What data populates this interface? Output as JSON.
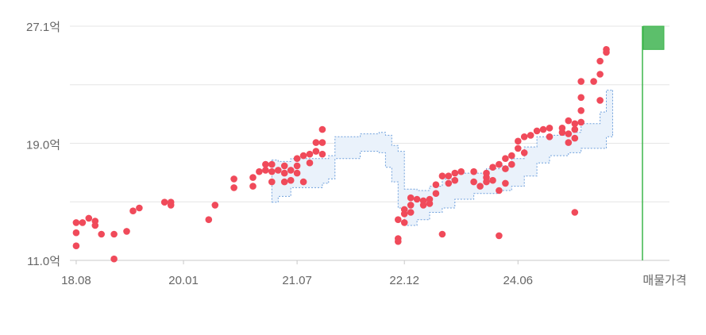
{
  "colors": {
    "dot": "#f04a5a",
    "band_fill": "#eaf2fb",
    "band_stroke": "#6fa0dc",
    "grid": "#e6e6e6",
    "axis": "#c8c8c8",
    "label": "#666666",
    "marker_line": "#3bb54a",
    "marker_flag": "#5cbf6b"
  },
  "chart_data": {
    "type": "scatter",
    "y_unit": "억",
    "ylim": [
      11.0,
      27.1
    ],
    "yticks": [
      {
        "value": 11.0,
        "label": "11.0억"
      },
      {
        "value": 19.0,
        "label": "19.0억"
      },
      {
        "value": 27.1,
        "label": "27.1억"
      }
    ],
    "xlim": [
      "2018-07",
      "2026-06"
    ],
    "xticks": [
      {
        "date": "2018-08",
        "label": "18.08"
      },
      {
        "date": "2020-01",
        "label": "20.01"
      },
      {
        "date": "2021-07",
        "label": "21.07"
      },
      {
        "date": "2022-12",
        "label": "22.12"
      },
      {
        "date": "2024-06",
        "label": "24.06"
      }
    ],
    "marker_label": "매물가격",
    "listing_price_range": [
      25.5,
      27.1
    ],
    "grid": true,
    "points": [
      {
        "x": "2018-08",
        "y": 13.6
      },
      {
        "x": "2018-08",
        "y": 12.9
      },
      {
        "x": "2018-08",
        "y": 12.0
      },
      {
        "x": "2018-09",
        "y": 13.6
      },
      {
        "x": "2018-10",
        "y": 13.9
      },
      {
        "x": "2018-11",
        "y": 13.7
      },
      {
        "x": "2018-11",
        "y": 13.4
      },
      {
        "x": "2018-12",
        "y": 12.8
      },
      {
        "x": "2019-02",
        "y": 12.8
      },
      {
        "x": "2019-02",
        "y": 11.1
      },
      {
        "x": "2019-04",
        "y": 13.0
      },
      {
        "x": "2019-05",
        "y": 14.4
      },
      {
        "x": "2019-06",
        "y": 14.6
      },
      {
        "x": "2019-10",
        "y": 15.0
      },
      {
        "x": "2019-11",
        "y": 15.0
      },
      {
        "x": "2019-11",
        "y": 14.8
      },
      {
        "x": "2020-05",
        "y": 13.8
      },
      {
        "x": "2020-06",
        "y": 14.8
      },
      {
        "x": "2020-09",
        "y": 16.0
      },
      {
        "x": "2020-09",
        "y": 16.6
      },
      {
        "x": "2020-12",
        "y": 16.7
      },
      {
        "x": "2020-12",
        "y": 16.1
      },
      {
        "x": "2021-01",
        "y": 17.1
      },
      {
        "x": "2021-02",
        "y": 17.2
      },
      {
        "x": "2021-02",
        "y": 17.6
      },
      {
        "x": "2021-03",
        "y": 17.6
      },
      {
        "x": "2021-03",
        "y": 17.1
      },
      {
        "x": "2021-03",
        "y": 16.4
      },
      {
        "x": "2021-04",
        "y": 17.2
      },
      {
        "x": "2021-05",
        "y": 17.5
      },
      {
        "x": "2021-05",
        "y": 17.0
      },
      {
        "x": "2021-05",
        "y": 16.4
      },
      {
        "x": "2021-06",
        "y": 17.2
      },
      {
        "x": "2021-06",
        "y": 16.5
      },
      {
        "x": "2021-07",
        "y": 18.0
      },
      {
        "x": "2021-07",
        "y": 17.5
      },
      {
        "x": "2021-07",
        "y": 17.0
      },
      {
        "x": "2021-08",
        "y": 18.2
      },
      {
        "x": "2021-08",
        "y": 16.4
      },
      {
        "x": "2021-09",
        "y": 18.3
      },
      {
        "x": "2021-09",
        "y": 17.7
      },
      {
        "x": "2021-10",
        "y": 18.5
      },
      {
        "x": "2021-10",
        "y": 19.1
      },
      {
        "x": "2021-11",
        "y": 18.3
      },
      {
        "x": "2021-11",
        "y": 19.1
      },
      {
        "x": "2021-11",
        "y": 20.0
      },
      {
        "x": "2022-11",
        "y": 13.8
      },
      {
        "x": "2022-11",
        "y": 12.5
      },
      {
        "x": "2022-11",
        "y": 12.3
      },
      {
        "x": "2022-12",
        "y": 14.2
      },
      {
        "x": "2022-12",
        "y": 14.5
      },
      {
        "x": "2022-12",
        "y": 13.6
      },
      {
        "x": "2023-01",
        "y": 15.3
      },
      {
        "x": "2023-01",
        "y": 14.8
      },
      {
        "x": "2023-01",
        "y": 14.3
      },
      {
        "x": "2023-02",
        "y": 15.2
      },
      {
        "x": "2023-03",
        "y": 14.8
      },
      {
        "x": "2023-03",
        "y": 15.1
      },
      {
        "x": "2023-04",
        "y": 15.2
      },
      {
        "x": "2023-04",
        "y": 14.9
      },
      {
        "x": "2023-05",
        "y": 15.6
      },
      {
        "x": "2023-05",
        "y": 16.2
      },
      {
        "x": "2023-06",
        "y": 16.8
      },
      {
        "x": "2023-06",
        "y": 12.8
      },
      {
        "x": "2023-07",
        "y": 16.3
      },
      {
        "x": "2023-07",
        "y": 16.8
      },
      {
        "x": "2023-08",
        "y": 17.0
      },
      {
        "x": "2023-08",
        "y": 16.5
      },
      {
        "x": "2023-09",
        "y": 17.1
      },
      {
        "x": "2023-11",
        "y": 17.1
      },
      {
        "x": "2023-11",
        "y": 16.4
      },
      {
        "x": "2023-12",
        "y": 16.1
      },
      {
        "x": "2024-01",
        "y": 17.0
      },
      {
        "x": "2024-01",
        "y": 16.7
      },
      {
        "x": "2024-01",
        "y": 16.4
      },
      {
        "x": "2024-02",
        "y": 17.4
      },
      {
        "x": "2024-02",
        "y": 16.5
      },
      {
        "x": "2024-03",
        "y": 17.6
      },
      {
        "x": "2024-03",
        "y": 15.8
      },
      {
        "x": "2024-03",
        "y": 12.7
      },
      {
        "x": "2024-04",
        "y": 18.0
      },
      {
        "x": "2024-04",
        "y": 17.3
      },
      {
        "x": "2024-04",
        "y": 16.3
      },
      {
        "x": "2024-05",
        "y": 18.2
      },
      {
        "x": "2024-05",
        "y": 17.6
      },
      {
        "x": "2024-06",
        "y": 19.2
      },
      {
        "x": "2024-06",
        "y": 18.7
      },
      {
        "x": "2024-07",
        "y": 19.5
      },
      {
        "x": "2024-07",
        "y": 18.4
      },
      {
        "x": "2024-08",
        "y": 19.6
      },
      {
        "x": "2024-09",
        "y": 19.9
      },
      {
        "x": "2024-10",
        "y": 20.0
      },
      {
        "x": "2024-11",
        "y": 20.1
      },
      {
        "x": "2024-11",
        "y": 19.5
      },
      {
        "x": "2025-01",
        "y": 20.1
      },
      {
        "x": "2025-01",
        "y": 19.8
      },
      {
        "x": "2025-02",
        "y": 20.6
      },
      {
        "x": "2025-02",
        "y": 19.7
      },
      {
        "x": "2025-02",
        "y": 19.1
      },
      {
        "x": "2025-03",
        "y": 20.4
      },
      {
        "x": "2025-03",
        "y": 20.0
      },
      {
        "x": "2025-03",
        "y": 19.4
      },
      {
        "x": "2025-03",
        "y": 14.3
      },
      {
        "x": "2025-04",
        "y": 20.5
      },
      {
        "x": "2025-04",
        "y": 21.3
      },
      {
        "x": "2025-04",
        "y": 22.2
      },
      {
        "x": "2025-04",
        "y": 23.3
      },
      {
        "x": "2025-06",
        "y": 23.3
      },
      {
        "x": "2025-07",
        "y": 23.8
      },
      {
        "x": "2025-07",
        "y": 24.7
      },
      {
        "x": "2025-07",
        "y": 22.0
      },
      {
        "x": "2025-08",
        "y": 25.3
      },
      {
        "x": "2025-08",
        "y": 25.5
      }
    ],
    "band_upper": [
      {
        "x": "2021-03",
        "y": 17.9
      },
      {
        "x": "2021-04",
        "y": 17.8
      },
      {
        "x": "2021-06",
        "y": 18.0
      },
      {
        "x": "2021-10",
        "y": 18.0
      },
      {
        "x": "2021-11",
        "y": 18.0
      },
      {
        "x": "2021-12",
        "y": 18.2
      },
      {
        "x": "2022-01",
        "y": 19.5
      },
      {
        "x": "2022-04",
        "y": 19.5
      },
      {
        "x": "2022-05",
        "y": 19.7
      },
      {
        "x": "2022-07",
        "y": 19.7
      },
      {
        "x": "2022-08",
        "y": 19.8
      },
      {
        "x": "2022-09",
        "y": 19.6
      },
      {
        "x": "2022-10",
        "y": 18.9
      },
      {
        "x": "2022-11",
        "y": 18.5
      },
      {
        "x": "2022-12",
        "y": 15.9
      },
      {
        "x": "2023-02",
        "y": 15.8
      },
      {
        "x": "2023-04",
        "y": 16.1
      },
      {
        "x": "2023-06",
        "y": 16.6
      },
      {
        "x": "2023-08",
        "y": 17.0
      },
      {
        "x": "2023-11",
        "y": 17.0
      },
      {
        "x": "2024-01",
        "y": 17.3
      },
      {
        "x": "2024-03",
        "y": 17.5
      },
      {
        "x": "2024-05",
        "y": 18.0
      },
      {
        "x": "2024-07",
        "y": 18.8
      },
      {
        "x": "2024-09",
        "y": 19.5
      },
      {
        "x": "2024-11",
        "y": 19.6
      },
      {
        "x": "2025-02",
        "y": 19.8
      },
      {
        "x": "2025-04",
        "y": 20.4
      },
      {
        "x": "2025-06",
        "y": 20.4
      },
      {
        "x": "2025-07",
        "y": 21.2
      },
      {
        "x": "2025-08",
        "y": 22.7
      },
      {
        "x": "2025-09",
        "y": 22.7
      }
    ],
    "band_lower": [
      {
        "x": "2021-03",
        "y": 15.0
      },
      {
        "x": "2021-04",
        "y": 15.4
      },
      {
        "x": "2021-06",
        "y": 16.0
      },
      {
        "x": "2021-10",
        "y": 16.0
      },
      {
        "x": "2021-11",
        "y": 16.3
      },
      {
        "x": "2021-12",
        "y": 16.6
      },
      {
        "x": "2022-01",
        "y": 18.0
      },
      {
        "x": "2022-04",
        "y": 18.0
      },
      {
        "x": "2022-05",
        "y": 18.5
      },
      {
        "x": "2022-07",
        "y": 18.5
      },
      {
        "x": "2022-08",
        "y": 18.4
      },
      {
        "x": "2022-09",
        "y": 17.4
      },
      {
        "x": "2022-10",
        "y": 16.4
      },
      {
        "x": "2022-11",
        "y": 14.6
      },
      {
        "x": "2022-12",
        "y": 13.4
      },
      {
        "x": "2023-02",
        "y": 13.8
      },
      {
        "x": "2023-04",
        "y": 14.3
      },
      {
        "x": "2023-06",
        "y": 14.6
      },
      {
        "x": "2023-08",
        "y": 15.2
      },
      {
        "x": "2023-11",
        "y": 15.6
      },
      {
        "x": "2024-01",
        "y": 15.6
      },
      {
        "x": "2024-03",
        "y": 15.8
      },
      {
        "x": "2024-05",
        "y": 16.1
      },
      {
        "x": "2024-07",
        "y": 16.8
      },
      {
        "x": "2024-09",
        "y": 17.7
      },
      {
        "x": "2024-11",
        "y": 18.2
      },
      {
        "x": "2025-02",
        "y": 18.4
      },
      {
        "x": "2025-04",
        "y": 18.7
      },
      {
        "x": "2025-06",
        "y": 18.7
      },
      {
        "x": "2025-07",
        "y": 18.7
      },
      {
        "x": "2025-08",
        "y": 19.5
      },
      {
        "x": "2025-09",
        "y": 19.7
      }
    ]
  }
}
